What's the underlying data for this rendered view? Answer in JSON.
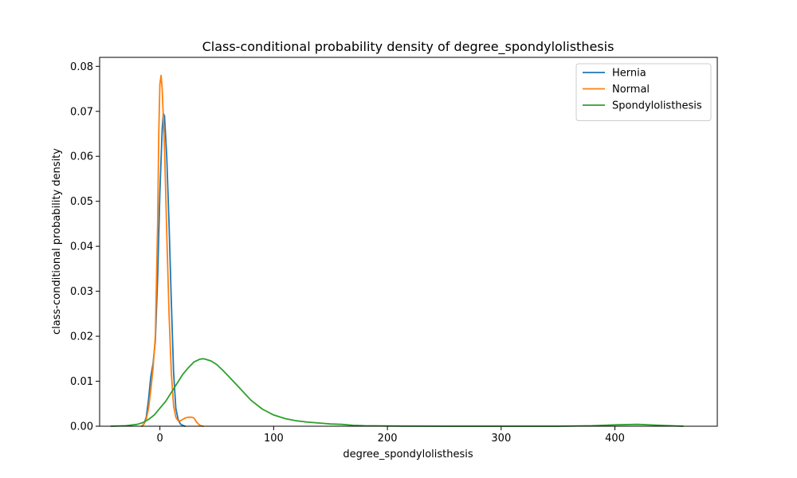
{
  "chart_data": {
    "type": "line",
    "title": "Class-conditional probability density of degree_spondylolisthesis",
    "xlabel": "degree_spondylolisthesis",
    "ylabel": "class-conditional probability density",
    "xlim": [
      -53,
      490
    ],
    "ylim": [
      0,
      0.082
    ],
    "xticks": [
      0,
      100,
      200,
      300,
      400
    ],
    "yticks": [
      0.0,
      0.01,
      0.02,
      0.03,
      0.04,
      0.05,
      0.06,
      0.07,
      0.08
    ],
    "xtick_labels": [
      "0",
      "100",
      "200",
      "300",
      "400"
    ],
    "ytick_labels": [
      "0.00",
      "0.01",
      "0.02",
      "0.03",
      "0.04",
      "0.05",
      "0.06",
      "0.07",
      "0.08"
    ],
    "grid": false,
    "legend_position": "top-right",
    "series": [
      {
        "name": "Hernia",
        "color": "#1f77b4",
        "x": [
          -16,
          -14,
          -12,
          -10,
          -8,
          -6,
          -4,
          -2,
          0,
          2,
          3,
          4,
          6,
          8,
          10,
          12,
          14,
          16,
          18,
          20,
          22
        ],
        "y": [
          0.0,
          0.0005,
          0.002,
          0.006,
          0.011,
          0.014,
          0.019,
          0.033,
          0.052,
          0.066,
          0.0695,
          0.069,
          0.06,
          0.045,
          0.028,
          0.012,
          0.004,
          0.0015,
          0.0005,
          0.0002,
          0.0
        ]
      },
      {
        "name": "Normal",
        "color": "#ff7f0e",
        "x": [
          -16,
          -14,
          -12,
          -10,
          -8,
          -6,
          -4,
          -2,
          -1,
          0,
          1,
          2,
          4,
          6,
          8,
          10,
          12,
          14,
          16,
          18,
          20,
          22,
          25,
          28,
          30,
          32,
          34,
          36,
          38
        ],
        "y": [
          0.0,
          0.0005,
          0.0015,
          0.004,
          0.008,
          0.013,
          0.02,
          0.045,
          0.065,
          0.076,
          0.078,
          0.075,
          0.062,
          0.043,
          0.025,
          0.012,
          0.0045,
          0.002,
          0.0012,
          0.0012,
          0.0015,
          0.0018,
          0.002,
          0.002,
          0.0018,
          0.001,
          0.0004,
          0.0001,
          0.0
        ]
      },
      {
        "name": "Spondylolisthesis",
        "color": "#2ca02c",
        "x": [
          -43,
          -30,
          -20,
          -15,
          -10,
          -5,
          0,
          5,
          10,
          15,
          20,
          25,
          30,
          35,
          38,
          40,
          45,
          50,
          55,
          60,
          70,
          80,
          90,
          100,
          110,
          120,
          130,
          140,
          150,
          160,
          170,
          180,
          200,
          220,
          250,
          300,
          350,
          380,
          400,
          420,
          440,
          460
        ],
        "y": [
          0.0,
          0.0001,
          0.0004,
          0.0008,
          0.0015,
          0.0025,
          0.004,
          0.0055,
          0.0075,
          0.0095,
          0.0115,
          0.013,
          0.0143,
          0.0149,
          0.015,
          0.0149,
          0.0145,
          0.0137,
          0.0125,
          0.0112,
          0.0085,
          0.0058,
          0.0038,
          0.0025,
          0.0017,
          0.0012,
          0.0009,
          0.0007,
          0.0005,
          0.0004,
          0.0002,
          0.0001,
          5e-05,
          2e-05,
          0.0,
          0.0,
          0.0,
          0.0001,
          0.0003,
          0.0004,
          0.0002,
          0.0
        ]
      }
    ]
  }
}
